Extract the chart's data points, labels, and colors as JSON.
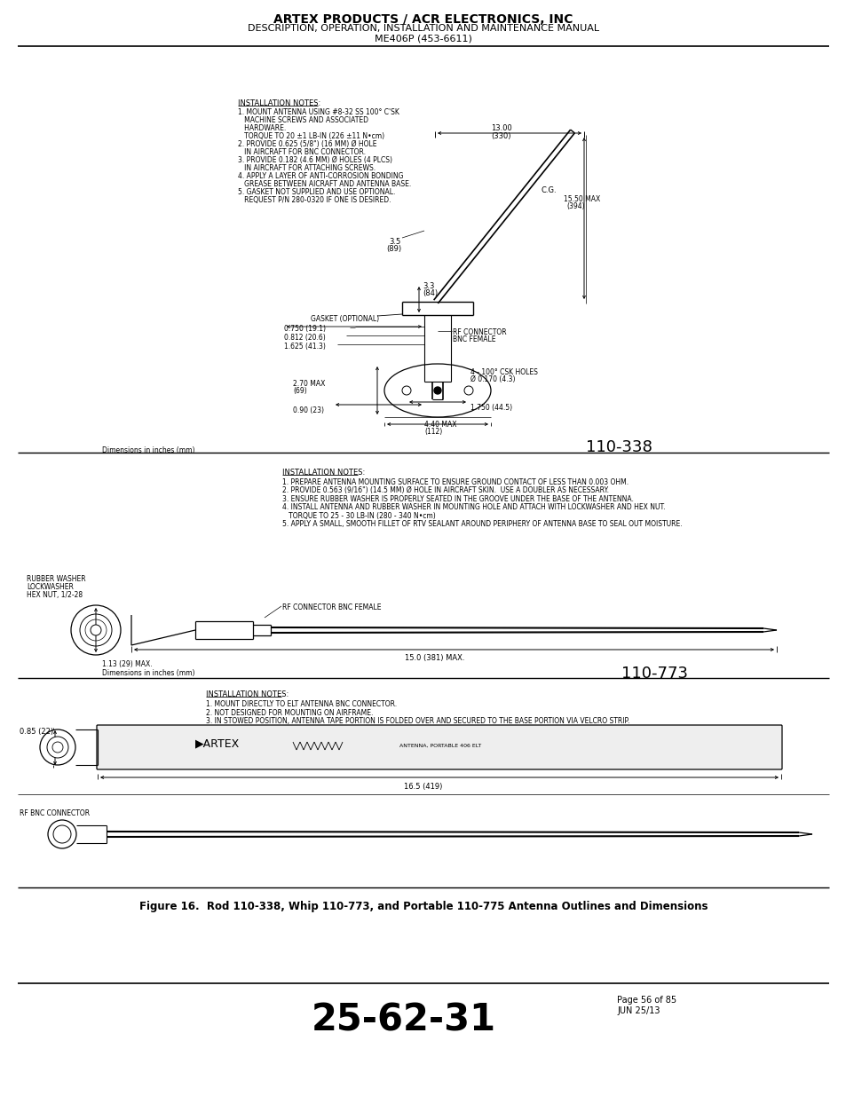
{
  "title_line1": "ARTEX PRODUCTS / ACR ELECTRONICS, INC",
  "title_line2": "DESCRIPTION, OPERATION, INSTALLATION AND MAINTENANCE MANUAL",
  "title_line3": "ME406P (453-6611)",
  "footer_number": "25-62-31",
  "footer_page": "Page 56 of 85",
  "footer_date": "JUN 25/13",
  "figure_caption": "Figure 16.  Rod 110-338, Whip 110-773, and Portable 110-775 Antenna Outlines and Dimensions",
  "drawing1_number": "110-338",
  "drawing2_number": "110-773",
  "bg_color": "#ffffff",
  "text_color": "#000000",
  "section1_notes_title": "INSTALLATION NOTES:",
  "section1_notes": [
    "1. MOUNT ANTENNA USING #8-32 SS 100° C'SK",
    "   MACHINE SCREWS AND ASSOCIATED",
    "   HARDWARE.",
    "   TORQUE TO 20 ±1 LB-IN (226 ±11 N•cm)",
    "2. PROVIDE 0.625 (5/8\") (16 MM) Ø HOLE",
    "   IN AIRCRAFT FOR BNC CONNECTOR.",
    "3. PROVIDE 0.182 (4.6 MM) Ø HOLES (4 PLCS)",
    "   IN AIRCRAFT FOR ATTACHING SCREWS.",
    "4. APPLY A LAYER OF ANTI-CORROSION BONDING",
    "   GREASE BETWEEN AICRAFT AND ANTENNA BASE.",
    "5. GASKET NOT SUPPLIED AND USE OPTIONAL.",
    "   REQUEST P/N 280-0320 IF ONE IS DESIRED."
  ],
  "section2_notes_title": "INSTALLATION NOTES:",
  "section2_notes": [
    "1. PREPARE ANTENNA MOUNTING SURFACE TO ENSURE GROUND CONTACT OF LESS THAN 0.003 OHM.",
    "2. PROVIDE 0.563 (9/16\") (14.5 MM) Ø HOLE IN AIRCRAFT SKIN.  USE A DOUBLER AS NECESSARY.",
    "3. ENSURE RUBBER WASHER IS PROPERLY SEATED IN THE GROOVE UNDER THE BASE OF THE ANTENNA.",
    "4. INSTALL ANTENNA AND RUBBER WASHER IN MOUNTING HOLE AND ATTACH WITH LOCKWASHER AND HEX NUT.",
    "   TORQUE TO 25 - 30 LB-IN (280 - 340 N•cm)",
    "5. APPLY A SMALL, SMOOTH FILLET OF RTV SEALANT AROUND PERIPHERY OF ANTENNA BASE TO SEAL OUT MOISTURE."
  ],
  "section3_notes_title": "INSTALLATION NOTES:",
  "section3_notes": [
    "1. MOUNT DIRECTLY TO ELT ANTENNA BNC CONNECTOR.",
    "2. NOT DESIGNED FOR MOUNTING ON AIRFRAME.",
    "3. IN STOWED POSITION, ANTENNA TAPE PORTION IS FOLDED OVER AND SECURED TO THE BASE PORTION VIA VELCRO STRIP."
  ]
}
